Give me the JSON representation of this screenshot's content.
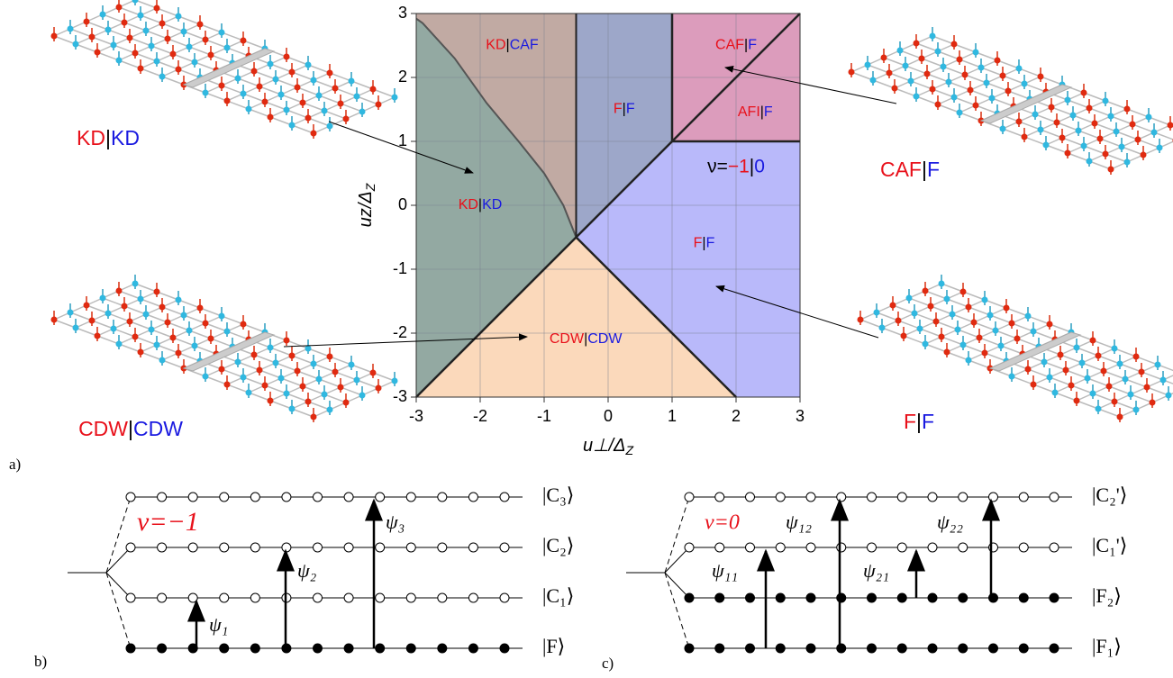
{
  "panel_labels": [
    "a)",
    "b)",
    "c)"
  ],
  "phase_diagram": {
    "xlabel": "u⊥/Δ",
    "xlabel_sub": "Z",
    "ylabel": "uz/Δ",
    "ylabel_sub": "Z",
    "xlim": [
      -3,
      3
    ],
    "ylim": [
      -3,
      3
    ],
    "xticks": [
      -3,
      -2,
      -1,
      0,
      1,
      2,
      3
    ],
    "yticks": [
      -3,
      -2,
      -1,
      0,
      1,
      2,
      3
    ],
    "regions": [
      [
        {
          "text": "KD",
          "color": "#e8101a"
        },
        {
          "text": "|",
          "color": "#000"
        },
        {
          "text": "CAF",
          "color": "#1a1ae0"
        }
      ],
      [
        {
          "text": "F",
          "color": "#e8101a"
        },
        {
          "text": "|",
          "color": "#000"
        },
        {
          "text": "F",
          "color": "#1a1ae0"
        }
      ],
      [
        {
          "text": "CAF",
          "color": "#e8101a"
        },
        {
          "text": "|",
          "color": "#000"
        },
        {
          "text": "F",
          "color": "#1a1ae0"
        }
      ],
      [
        {
          "text": "AFI",
          "color": "#e8101a"
        },
        {
          "text": "|",
          "color": "#000"
        },
        {
          "text": "F",
          "color": "#1a1ae0"
        }
      ],
      [
        {
          "text": "ν=",
          "color": "#000"
        },
        {
          "text": "−1",
          "color": "#e8101a"
        },
        {
          "text": "|",
          "color": "#000"
        },
        {
          "text": "0",
          "color": "#1a1ae0"
        }
      ],
      [
        {
          "text": "KD",
          "color": "#e8101a"
        },
        {
          "text": "|",
          "color": "#000"
        },
        {
          "text": "KD",
          "color": "#1a1ae0"
        }
      ],
      [
        {
          "text": "F",
          "color": "#e8101a"
        },
        {
          "text": "|",
          "color": "#000"
        },
        {
          "text": "F",
          "color": "#1a1ae0"
        }
      ],
      [
        {
          "text": "CDW",
          "color": "#e8101a"
        },
        {
          "text": "|",
          "color": "#000"
        },
        {
          "text": "CDW",
          "color": "#1a1ae0"
        }
      ]
    ]
  },
  "side_labels": [
    [
      {
        "text": "KD",
        "color": "#e8101a"
      },
      {
        "text": "|",
        "color": "#000"
      },
      {
        "text": "KD",
        "color": "#1a1ae0"
      }
    ],
    [
      {
        "text": "CAF",
        "color": "#e8101a"
      },
      {
        "text": "|",
        "color": "#000"
      },
      {
        "text": "F",
        "color": "#1a1ae0"
      }
    ],
    [
      {
        "text": "CDW",
        "color": "#e8101a"
      },
      {
        "text": "|",
        "color": "#000"
      },
      {
        "text": "CDW",
        "color": "#1a1ae0"
      }
    ],
    [
      {
        "text": "F",
        "color": "#e8101a"
      },
      {
        "text": "|",
        "color": "#000"
      },
      {
        "text": "F",
        "color": "#1a1ae0"
      }
    ]
  ],
  "panel_b": {
    "nu": "ν=−1",
    "levels": [
      "|C₃⟩",
      "|C₂⟩",
      "|C₁⟩",
      "|F⟩"
    ],
    "transitions": [
      "ψ₁",
      "ψ₂",
      "ψ₃"
    ]
  },
  "panel_c": {
    "nu": "ν=0",
    "levels": [
      "|C₂'⟩",
      "|C₁'⟩",
      "|F₂⟩",
      "|F₁⟩"
    ],
    "transitions": [
      "ψ₁₁",
      "ψ₁₂",
      "ψ₂₁",
      "ψ₂₂"
    ]
  }
}
